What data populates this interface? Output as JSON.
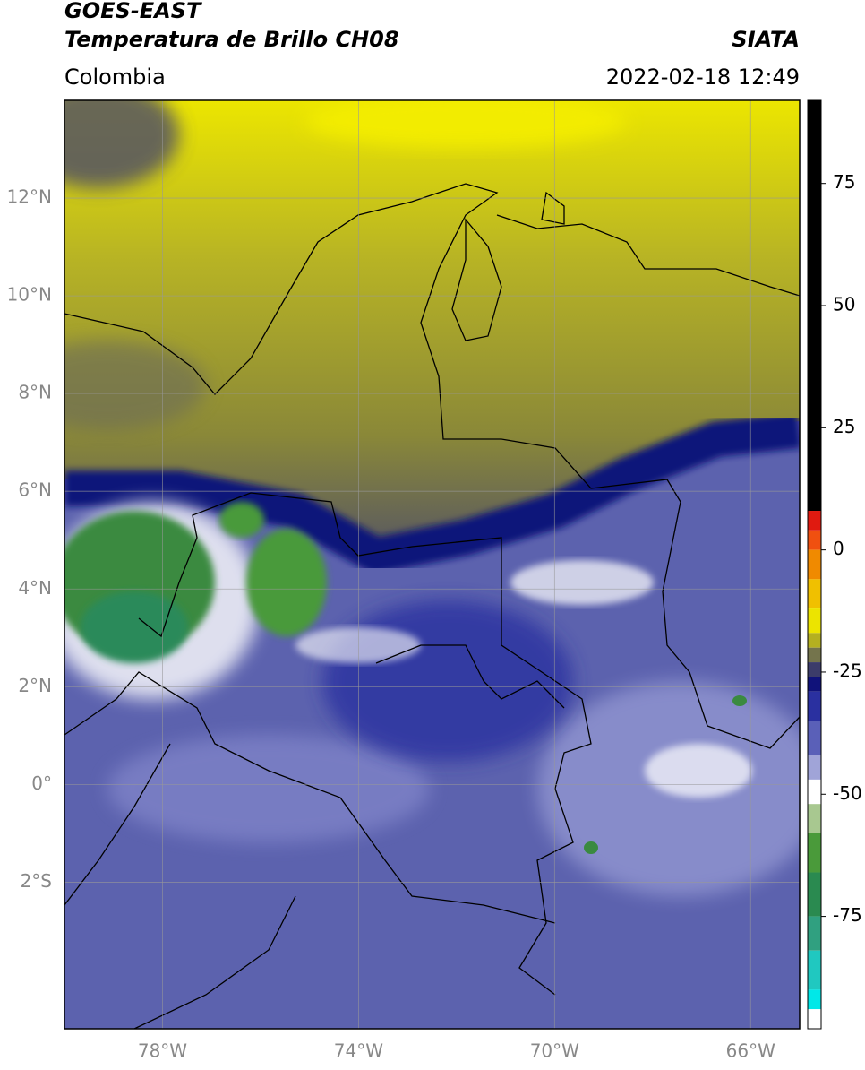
{
  "header": {
    "title": "GOES-EAST",
    "subtitle": "Temperatura de Brillo CH08",
    "source": "SIATA",
    "region": "Colombia",
    "datetime": "2022-02-18 12:49"
  },
  "map": {
    "lat_range": [
      -5,
      14
    ],
    "lon_range": [
      -80,
      -65
    ],
    "lat_ticks": [
      {
        "value": 12,
        "label": "12°N"
      },
      {
        "value": 10,
        "label": "10°N"
      },
      {
        "value": 8,
        "label": "8°N"
      },
      {
        "value": 6,
        "label": "6°N"
      },
      {
        "value": 4,
        "label": "4°N"
      },
      {
        "value": 2,
        "label": "2°N"
      },
      {
        "value": 0,
        "label": "0°"
      },
      {
        "value": -2,
        "label": "2°S"
      }
    ],
    "lon_ticks": [
      {
        "value": -78,
        "label": "78°W"
      },
      {
        "value": -74,
        "label": "74°W"
      },
      {
        "value": -70,
        "label": "70°W"
      },
      {
        "value": -66,
        "label": "66°W"
      }
    ]
  },
  "colorbar": {
    "range": [
      -98,
      92
    ],
    "ticks": [
      75,
      50,
      25,
      0,
      -25,
      -50,
      -75
    ],
    "segments": [
      {
        "min": 8,
        "max": 92,
        "color": "#000000"
      },
      {
        "min": 4,
        "max": 8,
        "color": "#e01a10"
      },
      {
        "min": 0,
        "max": 4,
        "color": "#f05010"
      },
      {
        "min": -6,
        "max": 0,
        "color": "#f08a00"
      },
      {
        "min": -12,
        "max": -6,
        "color": "#f0c000"
      },
      {
        "min": -17,
        "max": -12,
        "color": "#ece400"
      },
      {
        "min": -20,
        "max": -17,
        "color": "#b4b020"
      },
      {
        "min": -23,
        "max": -20,
        "color": "#74744c"
      },
      {
        "min": -26,
        "max": -23,
        "color": "#3c3c6a"
      },
      {
        "min": -29,
        "max": -26,
        "color": "#10127a"
      },
      {
        "min": -35,
        "max": -29,
        "color": "#2a30a0"
      },
      {
        "min": -42,
        "max": -35,
        "color": "#5a60b8"
      },
      {
        "min": -47,
        "max": -42,
        "color": "#a0a4d8"
      },
      {
        "min": -52,
        "max": -47,
        "color": "#ffffff"
      },
      {
        "min": -58,
        "max": -52,
        "color": "#a8c890"
      },
      {
        "min": -66,
        "max": -58,
        "color": "#4a9a3a"
      },
      {
        "min": -75,
        "max": -66,
        "color": "#2a8a50"
      },
      {
        "min": -82,
        "max": -75,
        "color": "#30a080"
      },
      {
        "min": -90,
        "max": -82,
        "color": "#20c8c0"
      },
      {
        "min": -94,
        "max": -90,
        "color": "#00e8e8"
      },
      {
        "min": -98,
        "max": -94,
        "color": "#ffffff"
      }
    ]
  }
}
